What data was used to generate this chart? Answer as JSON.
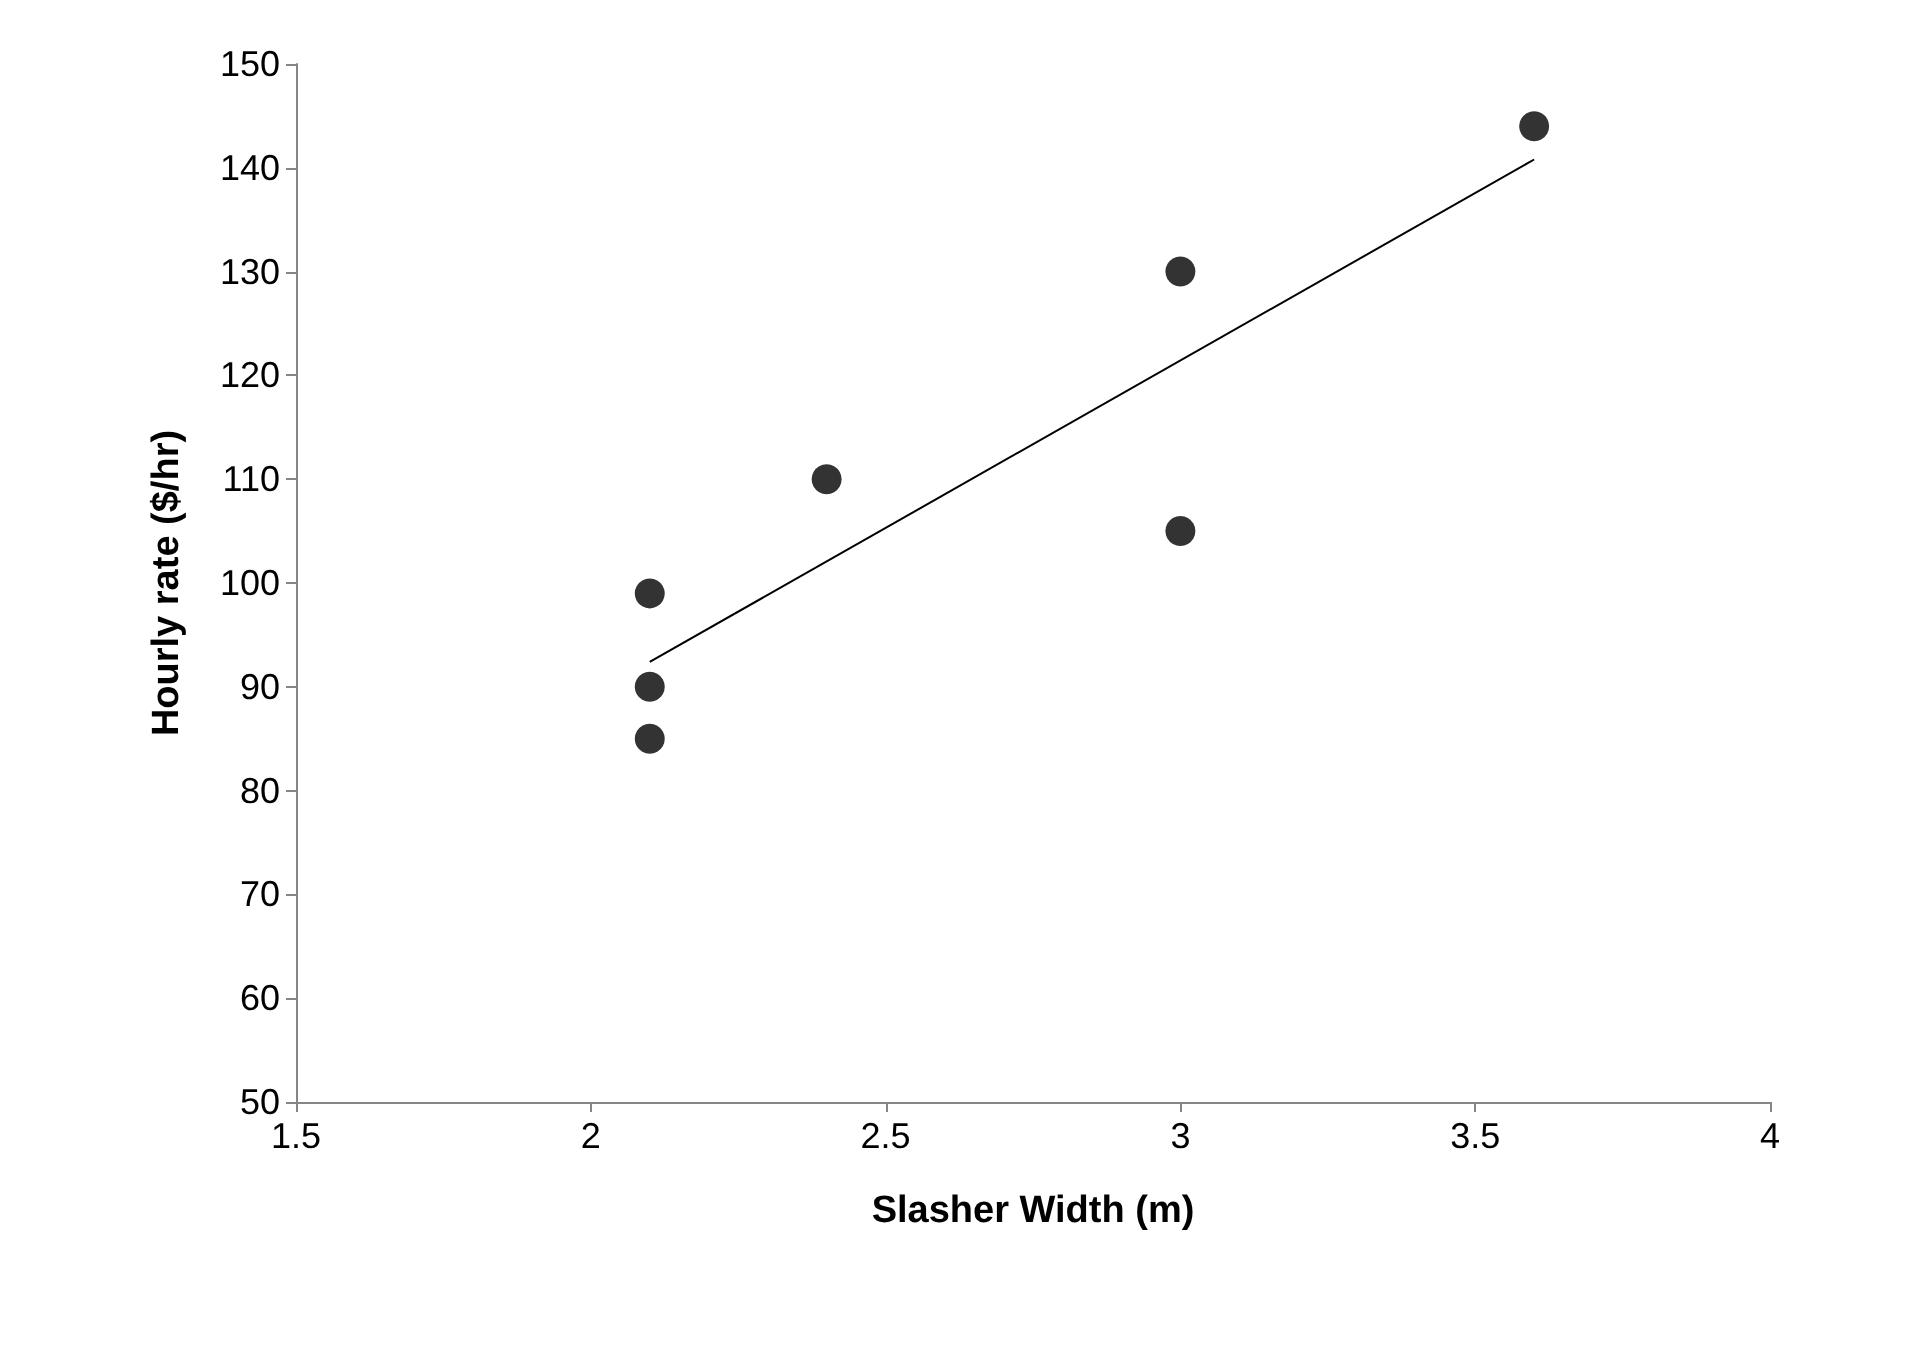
{
  "chart_data": {
    "type": "scatter",
    "xlabel": "Slasher Width (m)",
    "ylabel": "Hourly rate ($/hr)",
    "xlim": [
      1.5,
      4
    ],
    "xticks": [
      1.5,
      2,
      2.5,
      3,
      3.5,
      4
    ],
    "ylim": [
      50,
      150
    ],
    "yticks": [
      50,
      60,
      70,
      80,
      90,
      100,
      110,
      120,
      130,
      140,
      150
    ],
    "grid": false,
    "marker": "circle",
    "series": [
      {
        "color": "#000000",
        "x": [
          2.1,
          2.1,
          2.1,
          2.4,
          3,
          3,
          3.6
        ],
        "values": [
          99,
          90,
          85,
          110,
          130,
          105,
          144
        ]
      },
      {
        "type": "line",
        "color": "#000000",
        "marker": "none",
        "line_style": "solid",
        "x": [
          2.1,
          3.6
        ],
        "values": [
          92.4,
          140.8
        ]
      }
    ]
  }
}
